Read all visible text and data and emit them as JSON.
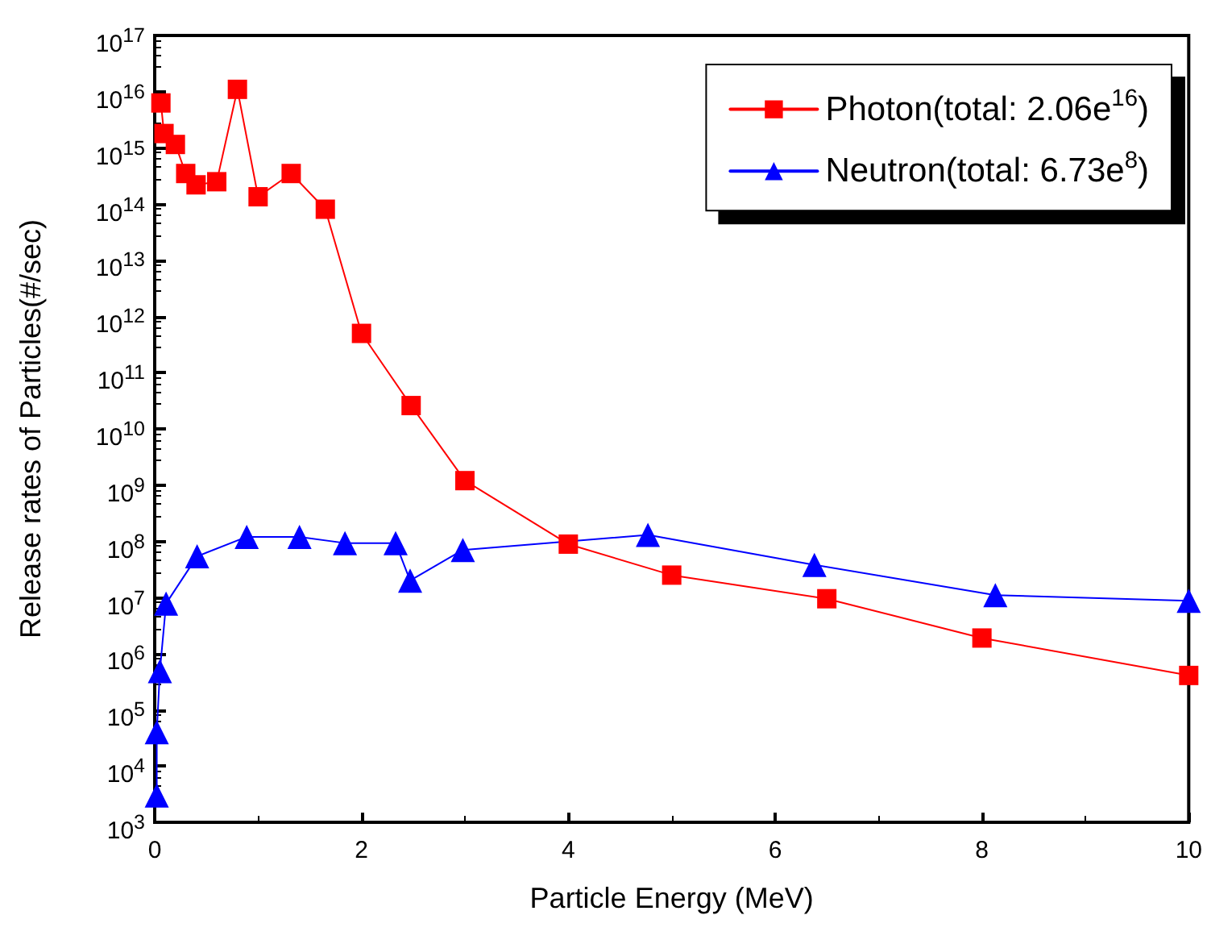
{
  "chart_data": {
    "type": "line",
    "xlabel": "Particle Energy (MeV)",
    "ylabel": "Release rates of Particles(#/sec)",
    "log": "y",
    "xlim": [
      0,
      10
    ],
    "xticks": [
      0,
      2,
      4,
      6,
      8,
      10
    ],
    "ylim": [
      1000,
      1e+17
    ],
    "yticks": [
      {
        "value": 1000.0,
        "label": "10$^{3}$"
      },
      {
        "value": 10000.0,
        "label": "10$^{4}$"
      },
      {
        "value": 100000.0,
        "label": "10$^{5}$"
      },
      {
        "value": 1000000.0,
        "label": "10$^{6}$"
      },
      {
        "value": 10000000.0,
        "label": "10$^{7}$"
      },
      {
        "value": 100000000.0,
        "label": "10$^{8}$"
      },
      {
        "value": 1000000000.0,
        "label": "10$^{9}$"
      },
      {
        "value": 10000000000.0,
        "label": "10$^{10}$"
      },
      {
        "value": 100000000000.0,
        "label": "10$^{11}$"
      },
      {
        "value": 1000000000000.0,
        "label": "10$^{12}$"
      },
      {
        "value": 10000000000000.0,
        "label": "10$^{13}$"
      },
      {
        "value": 100000000000000.0,
        "label": "10$^{14}$"
      },
      {
        "value": 1000000000000000.0,
        "label": "10$^{15}$"
      },
      {
        "value": 1e+16,
        "label": "10$^{16}$"
      },
      {
        "value": 1e+17,
        "label": "10$^{17}$"
      }
    ],
    "grid": false,
    "legend": "top right",
    "line_style": "solid",
    "series": [
      {
        "name": "Photon(total: 2.06e$^{16}$)",
        "color": "#ff0000",
        "marker": "square",
        "x": [
          0.06,
          0.09,
          0.2,
          0.3,
          0.4,
          0.6,
          0.8,
          1.0,
          1.32,
          1.65,
          2.0,
          2.48,
          3.0,
          4.0,
          5.0,
          6.5,
          8.0,
          10.0
        ],
        "values": [
          6300000000000000.0,
          1800000000000000.0,
          1150000000000000.0,
          350000000000000.0,
          220000000000000.0,
          250000000000000.0,
          1.1e+16,
          135000000000000.0,
          350000000000000.0,
          81000000000000.0,
          500000000000.0,
          26000000000.0,
          1200000000.0,
          89000000.0,
          25000000.0,
          9500000.0,
          1900000.0,
          410000.0
        ]
      },
      {
        "name": "Neutron(total: 6.73e$^{8}$)",
        "color": "#0000ff",
        "marker": "triangle",
        "x": [
          0.02,
          0.02,
          0.05,
          0.11,
          0.41,
          0.89,
          1.4,
          1.84,
          2.33,
          2.47,
          2.98,
          4.77,
          6.38,
          8.13,
          10.0
        ],
        "values": [
          3000,
          40000,
          490000.0,
          7800000.0,
          54000000.0,
          120000000.0,
          120000000.0,
          93000000.0,
          93000000.0,
          20000000.0,
          70000000.0,
          130000000.0,
          38000000.0,
          11000000.0,
          8700000.0
        ]
      }
    ]
  }
}
